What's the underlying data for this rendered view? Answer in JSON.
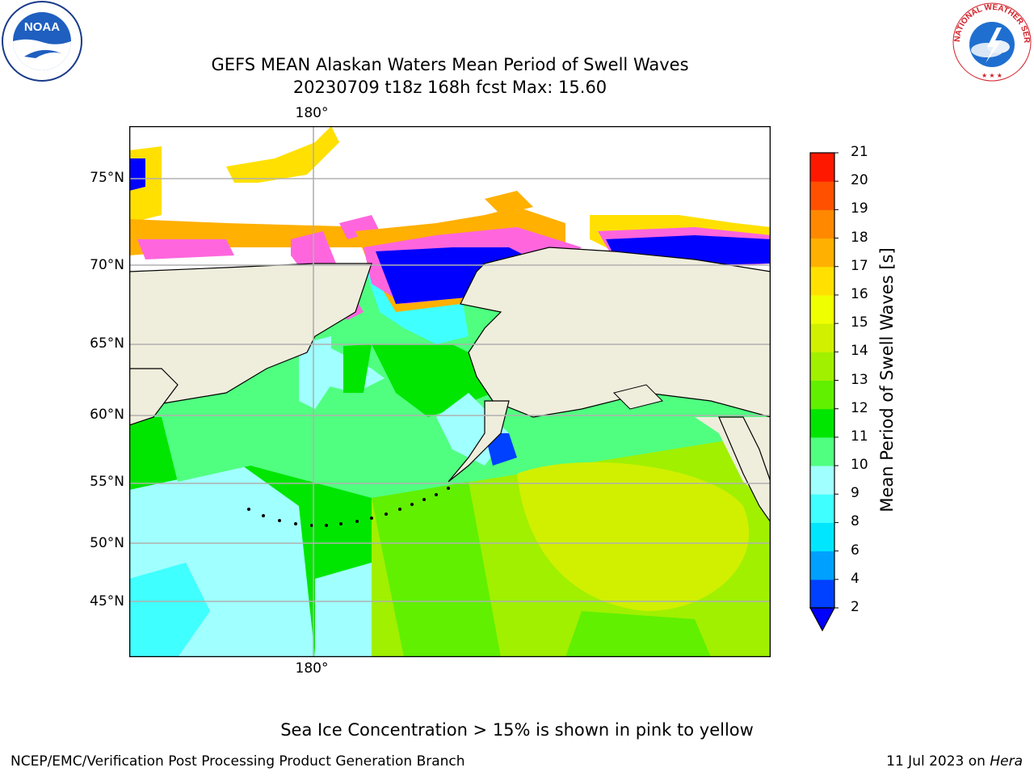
{
  "title_line1": "GEFS MEAN Alaskan Waters Mean Period of Swell Waves",
  "title_line2": "20230709 t18z 168h fcst   Max: 15.60",
  "logos": {
    "left": "NOAA",
    "right": "NATIONAL WEATHER SERVICE"
  },
  "map": {
    "lon_label_top": "180°",
    "lon_label_bottom": "180°",
    "lat_labels": [
      "75°N",
      "70°N",
      "65°N",
      "60°N",
      "55°N",
      "50°N",
      "45°N"
    ],
    "land_color": "#efeddc",
    "grid_color": "#b0b0b0"
  },
  "colorbar": {
    "title": "Mean Period of Swell Waves [s]",
    "ticks": [
      "2",
      "4",
      "6",
      "8",
      "9",
      "10",
      "11",
      "12",
      "13",
      "14",
      "15",
      "16",
      "17",
      "18",
      "19",
      "20",
      "21"
    ],
    "colors": [
      "#0040ff",
      "#00a0ff",
      "#00e6ff",
      "#40ffff",
      "#a0ffff",
      "#50ff80",
      "#00e600",
      "#60f000",
      "#a0f000",
      "#d0f000",
      "#f0ff00",
      "#ffe000",
      "#ffb000",
      "#ff8800",
      "#ff5000",
      "#ff1800"
    ],
    "under_color": "#0000ff"
  },
  "note": "Sea Ice Concentration > 15% is shown in pink to yellow",
  "footer_left": "NCEP/EMC/Verification Post Processing Product Generation Branch",
  "footer_right_date": "11 Jul 2023 on",
  "footer_right_host": "Hera"
}
